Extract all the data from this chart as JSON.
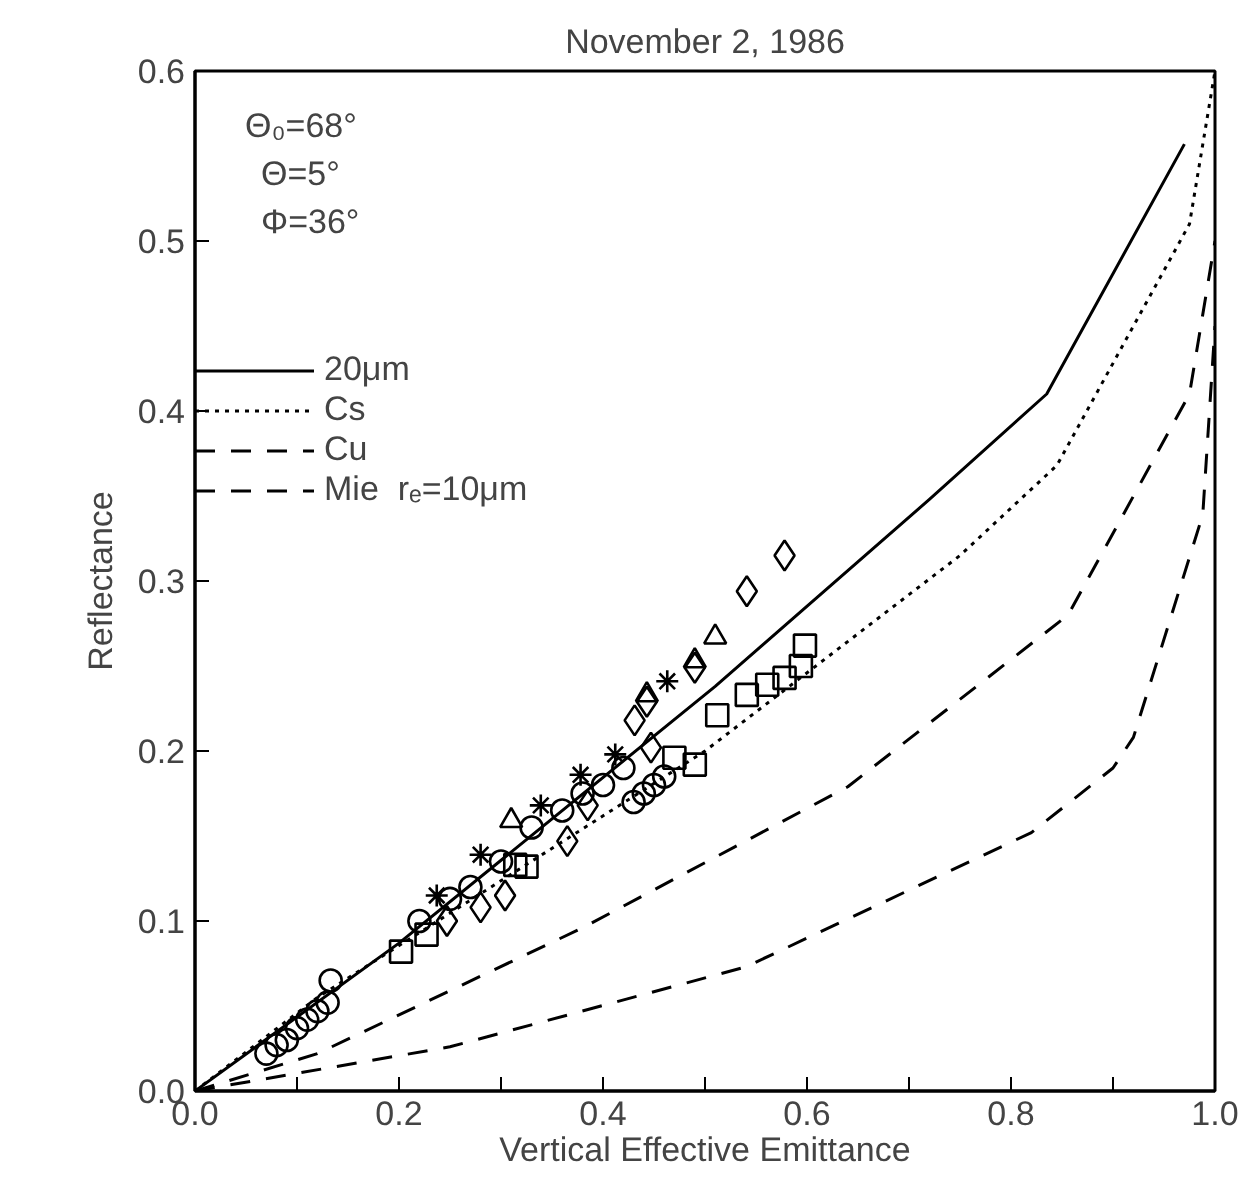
{
  "chart_data": {
    "type": "line",
    "title": "November 2, 1986",
    "xlabel": "Vertical Effective Emittance",
    "ylabel": "Reflectance",
    "annotations": [
      "Θ₀=68°",
      "Θ=5°",
      "Φ=36°"
    ],
    "xlim": [
      0,
      1
    ],
    "ylim": [
      0,
      0.6
    ],
    "xticks": [
      {
        "value": 0,
        "label": "0.0"
      },
      {
        "value": 0.1,
        "label": null
      },
      {
        "value": 0.2,
        "label": "0.2"
      },
      {
        "value": 0.3,
        "label": null
      },
      {
        "value": 0.4,
        "label": "0.4"
      },
      {
        "value": 0.5,
        "label": null
      },
      {
        "value": 0.6,
        "label": "0.6"
      },
      {
        "value": 0.7,
        "label": null
      },
      {
        "value": 0.8,
        "label": "0.8"
      },
      {
        "value": 0.9,
        "label": null
      },
      {
        "value": 1.0,
        "label": "1.0"
      }
    ],
    "yticks": [
      {
        "value": 0,
        "label": "0.0"
      },
      {
        "value": 0.1,
        "label": "0.1"
      },
      {
        "value": 0.2,
        "label": "0.2"
      },
      {
        "value": 0.3,
        "label": "0.3"
      },
      {
        "value": 0.4,
        "label": "0.4"
      },
      {
        "value": 0.5,
        "label": "0.5"
      },
      {
        "value": 0.6,
        "label": "0.6"
      }
    ],
    "grid": false,
    "legend": "top left",
    "series": [
      {
        "name": "20μm",
        "color": "#000000",
        "line_style": "solid",
        "x": [
          0,
          0.2,
          0.51,
          0.72,
          0.835,
          0.97
        ],
        "values": [
          0,
          0.087,
          0.238,
          0.348,
          0.41,
          0.557
        ]
      },
      {
        "name": "Cs",
        "color": "#000000",
        "line_style": "dotted",
        "x": [
          0,
          0.12,
          0.5,
          0.75,
          0.845,
          0.975,
          1.0
        ],
        "values": [
          0,
          0.055,
          0.2,
          0.315,
          0.368,
          0.51,
          0.6
        ]
      },
      {
        "name": "Cu",
        "color": "#000000",
        "line_style": "dashed",
        "x": [
          0,
          0.12,
          0.38,
          0.64,
          0.856,
          0.975,
          1.0
        ],
        "values": [
          0,
          0.022,
          0.096,
          0.179,
          0.28,
          0.41,
          0.5
        ]
      },
      {
        "name": "Mie  rₑ=10μm",
        "color": "#000000",
        "line_style": "dashed",
        "x": [
          0,
          0.25,
          0.54,
          0.82,
          0.9,
          0.92,
          0.988,
          1.0
        ],
        "values": [
          0,
          0.026,
          0.073,
          0.152,
          0.19,
          0.208,
          0.339,
          0.45
        ]
      },
      {
        "type": "scatter",
        "marker": "circle",
        "color": "#000000",
        "x": [
          0.07,
          0.08,
          0.09,
          0.1,
          0.11,
          0.12,
          0.13,
          0.133,
          0.22,
          0.25,
          0.27,
          0.3,
          0.33,
          0.36,
          0.38,
          0.4,
          0.42,
          0.43,
          0.44,
          0.45,
          0.46
        ],
        "values": [
          0.022,
          0.027,
          0.03,
          0.037,
          0.042,
          0.047,
          0.052,
          0.065,
          0.1,
          0.113,
          0.12,
          0.135,
          0.155,
          0.165,
          0.175,
          0.18,
          0.19,
          0.17,
          0.175,
          0.18,
          0.185
        ]
      },
      {
        "type": "scatter",
        "marker": "diamond",
        "color": "#000000",
        "x": [
          0.578,
          0.541,
          0.247,
          0.28,
          0.304,
          0.365,
          0.385,
          0.431,
          0.443,
          0.447,
          0.49
        ],
        "values": [
          0.315,
          0.294,
          0.1,
          0.108,
          0.115,
          0.147,
          0.168,
          0.218,
          0.229,
          0.202,
          0.249
        ]
      },
      {
        "type": "scatter",
        "marker": "square",
        "color": "#000000",
        "x": [
          0.202,
          0.227,
          0.314,
          0.325,
          0.47,
          0.49,
          0.512,
          0.541,
          0.561,
          0.578,
          0.594,
          0.598
        ],
        "values": [
          0.082,
          0.092,
          0.133,
          0.132,
          0.196,
          0.192,
          0.221,
          0.233,
          0.239,
          0.243,
          0.25,
          0.262
        ]
      },
      {
        "type": "scatter",
        "marker": "triangle",
        "color": "#000000",
        "x": [
          0.31,
          0.443,
          0.49,
          0.51
        ],
        "values": [
          0.159,
          0.233,
          0.253,
          0.267
        ]
      },
      {
        "type": "scatter",
        "marker": "cross",
        "color": "#000000",
        "x": [
          0.237,
          0.28,
          0.339,
          0.378,
          0.412,
          0.463
        ],
        "values": [
          0.115,
          0.139,
          0.168,
          0.186,
          0.198,
          0.241
        ]
      }
    ]
  }
}
